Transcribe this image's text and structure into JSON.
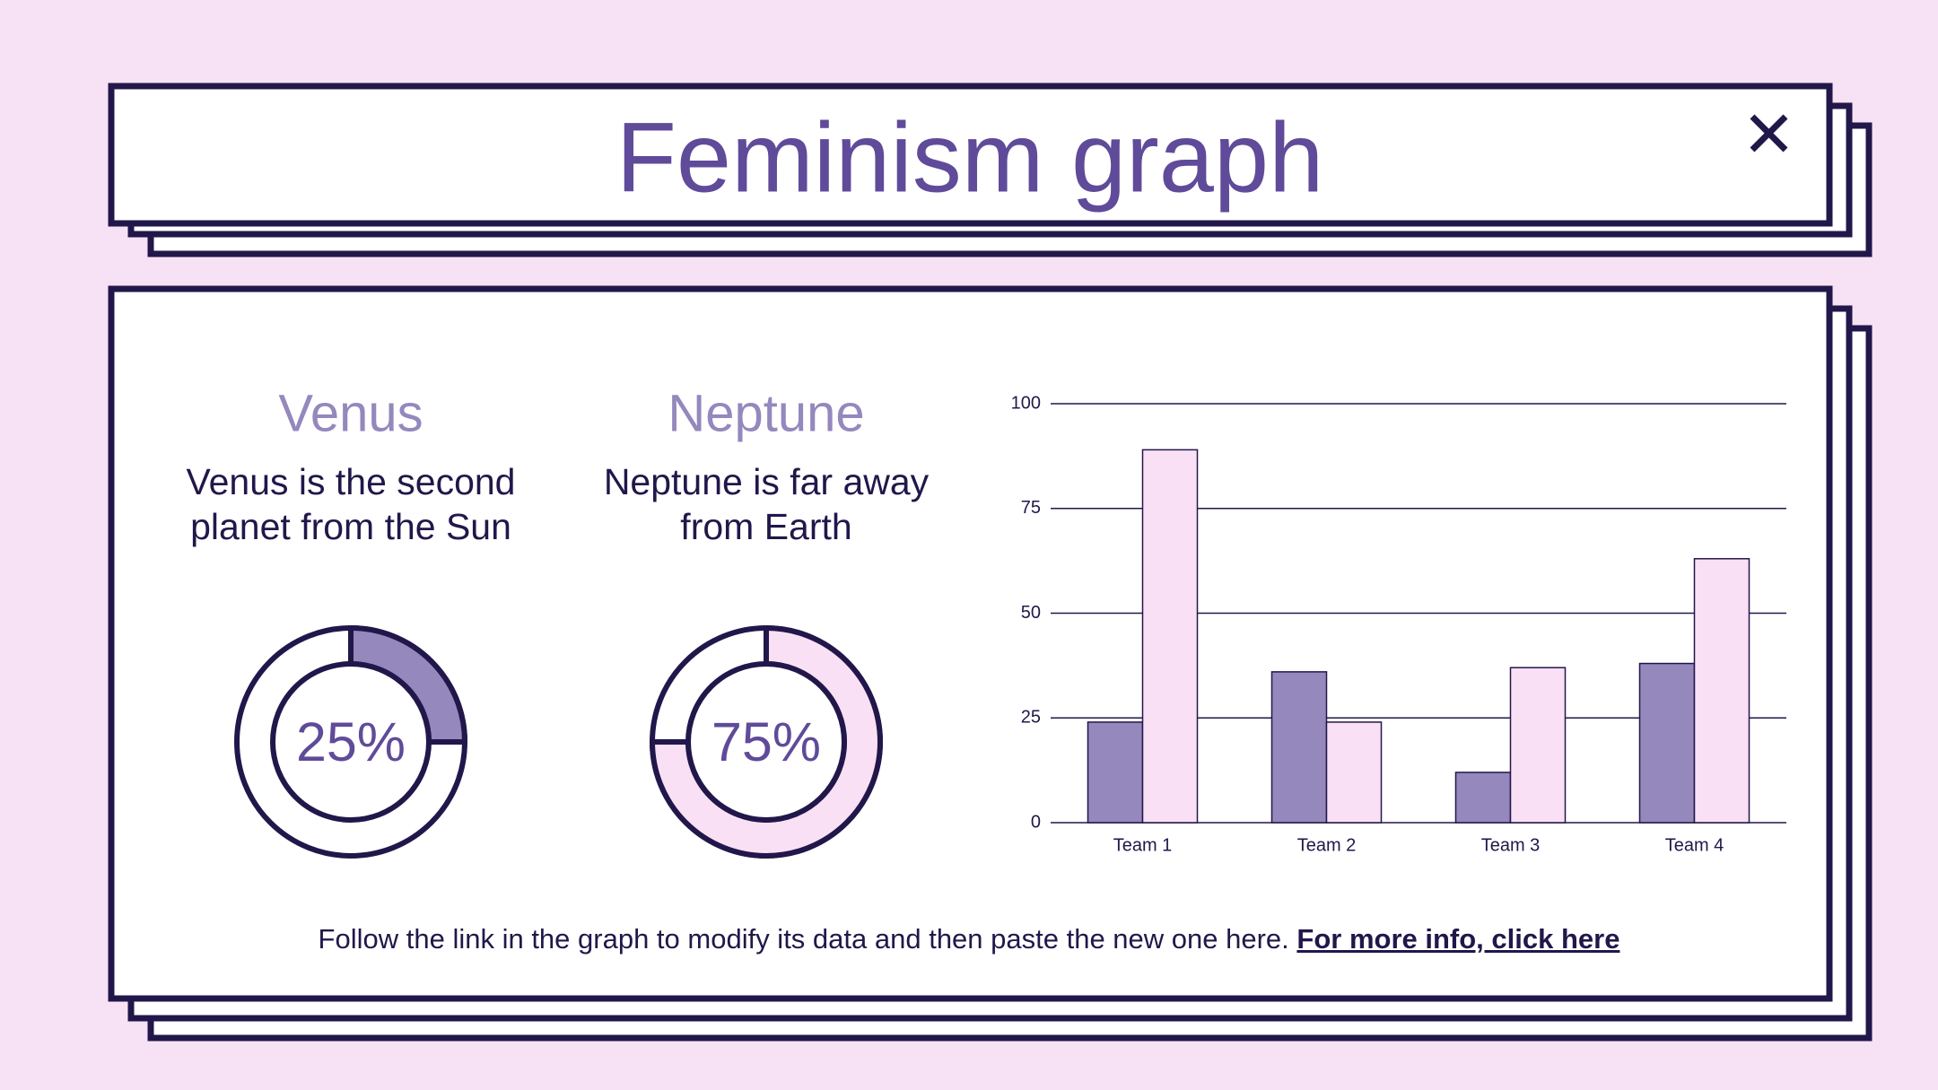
{
  "header": {
    "title": "Feminism graph"
  },
  "chart_data": [
    {
      "type": "donut",
      "title": "Venus",
      "subtitle": "Venus is the second planet from the Sun",
      "values": [
        25
      ],
      "value_labels": [
        "25%"
      ],
      "color": "#9488bd"
    },
    {
      "type": "donut",
      "title": "Neptune",
      "subtitle": "Neptune is far away from Earth",
      "values": [
        75
      ],
      "value_labels": [
        "75%"
      ],
      "color": "#f9e0f5"
    },
    {
      "type": "bar",
      "categories": [
        "Team 1",
        "Team 2",
        "Team 3",
        "Team 4"
      ],
      "series": [
        {
          "color": "#9488bd",
          "values": [
            24,
            36,
            12,
            38
          ]
        },
        {
          "color": "#f9e0f5",
          "values": [
            89,
            24,
            37,
            63
          ]
        }
      ],
      "ylim": [
        0,
        100
      ],
      "yticks": [
        0,
        25,
        50,
        75,
        100
      ],
      "grid": true
    }
  ],
  "footer": {
    "text": "Follow the link in the graph to modify its data and then paste the new one here.",
    "link": "For more info, click here"
  }
}
